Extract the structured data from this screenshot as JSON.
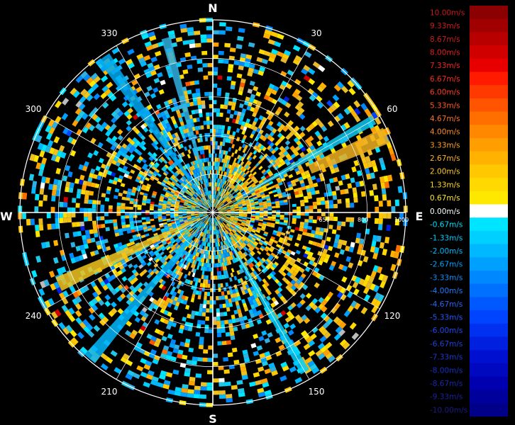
{
  "compass": {
    "north": "N",
    "east": "E",
    "south": "S",
    "west": "W"
  },
  "bearings": [
    {
      "angle": 30,
      "label": "30"
    },
    {
      "angle": 60,
      "label": "60"
    },
    {
      "angle": 120,
      "label": "120"
    },
    {
      "angle": 150,
      "label": "150"
    },
    {
      "angle": 210,
      "label": "210"
    },
    {
      "angle": 240,
      "label": "240"
    },
    {
      "angle": 300,
      "label": "300"
    },
    {
      "angle": 330,
      "label": "330"
    }
  ],
  "range_rings": [
    "650",
    "800",
    "1000"
  ],
  "legend": [
    {
      "label": "10.00m/s",
      "color": "#8b0000",
      "text_color": "#c81a1a"
    },
    {
      "label": "9.33m/s",
      "color": "#a00000",
      "text_color": "#cc1a1a"
    },
    {
      "label": "8.67m/s",
      "color": "#b80000",
      "text_color": "#d01c1c"
    },
    {
      "label": "8.00m/s",
      "color": "#d00000",
      "text_color": "#e01e1e"
    },
    {
      "label": "7.33m/s",
      "color": "#e80000",
      "text_color": "#f02020"
    },
    {
      "label": "6.67m/s",
      "color": "#ff1a00",
      "text_color": "#ff2a1a"
    },
    {
      "label": "6.00m/s",
      "color": "#ff3a00",
      "text_color": "#ff3c1c"
    },
    {
      "label": "5.33m/s",
      "color": "#ff5500",
      "text_color": "#ff5a20"
    },
    {
      "label": "4.67m/s",
      "color": "#ff6f00",
      "text_color": "#ff7020"
    },
    {
      "label": "4.00m/s",
      "color": "#ff8800",
      "text_color": "#ff8a20"
    },
    {
      "label": "3.33m/s",
      "color": "#ff9e00",
      "text_color": "#ffa020"
    },
    {
      "label": "2.67m/s",
      "color": "#ffb300",
      "text_color": "#ffb420"
    },
    {
      "label": "2.00m/s",
      "color": "#ffc800",
      "text_color": "#ffc820"
    },
    {
      "label": "1.33m/s",
      "color": "#ffd900",
      "text_color": "#ffd820"
    },
    {
      "label": "0.67m/s",
      "color": "#ffe800",
      "text_color": "#ffe820"
    },
    {
      "label": "0.00m/s",
      "color": "#ffffff",
      "text_color": "#ffffff"
    },
    {
      "label": "-0.67m/s",
      "color": "#00e5ff",
      "text_color": "#00e0ff"
    },
    {
      "label": "-1.33m/s",
      "color": "#00d0ff",
      "text_color": "#00ccff"
    },
    {
      "label": "-2.00m/s",
      "color": "#00b8ff",
      "text_color": "#00b8ff"
    },
    {
      "label": "-2.67m/s",
      "color": "#00a0ff",
      "text_color": "#00a4ff"
    },
    {
      "label": "-3.33m/s",
      "color": "#0088ff",
      "text_color": "#1090ff"
    },
    {
      "label": "-4.00m/s",
      "color": "#0070ff",
      "text_color": "#1a7cff"
    },
    {
      "label": "-4.67m/s",
      "color": "#0058ff",
      "text_color": "#2068ff"
    },
    {
      "label": "-5.33m/s",
      "color": "#0044ff",
      "text_color": "#2258ff"
    },
    {
      "label": "-6.00m/s",
      "color": "#0030f0",
      "text_color": "#2048f0"
    },
    {
      "label": "-6.67m/s",
      "color": "#0020e0",
      "text_color": "#2040e0"
    },
    {
      "label": "-7.33m/s",
      "color": "#0010d0",
      "text_color": "#1a38d0"
    },
    {
      "label": "-8.00m/s",
      "color": "#0008c0",
      "text_color": "#1830c0"
    },
    {
      "label": "-8.67m/s",
      "color": "#0000b0",
      "text_color": "#1828b0"
    },
    {
      "label": "-9.33m/s",
      "color": "#00009c",
      "text_color": "#1a229c"
    },
    {
      "label": "-10.00m/s",
      "color": "#000088",
      "text_color": "#1a1c88"
    }
  ]
}
